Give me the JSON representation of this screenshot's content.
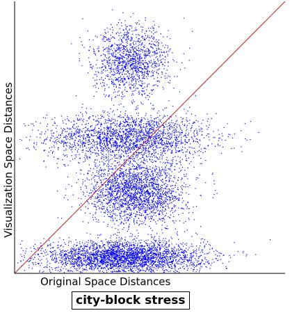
{
  "chart_data": {
    "type": "scatter",
    "title": "city-block stress",
    "xlabel": "Original Space Distances",
    "ylabel": "Visualization Space Distances",
    "xlim": [
      0,
      1
    ],
    "ylim": [
      0,
      1
    ],
    "grid": false,
    "point_color": "#0000ff",
    "reference_line": {
      "color": "#b22222",
      "from": [
        0,
        0
      ],
      "to": [
        1,
        1
      ]
    },
    "density_regions": [
      {
        "x_center": 0.42,
        "x_spread": 0.3,
        "y_center": 0.5,
        "y_spread": 0.09,
        "weight": 0.25
      },
      {
        "x_center": 0.4,
        "x_spread": 0.3,
        "y_center": 0.06,
        "y_spread": 0.06,
        "weight": 0.35
      },
      {
        "x_center": 0.45,
        "x_spread": 0.18,
        "y_center": 0.3,
        "y_spread": 0.12,
        "weight": 0.25
      },
      {
        "x_center": 0.43,
        "x_spread": 0.14,
        "y_center": 0.78,
        "y_spread": 0.13,
        "weight": 0.15
      }
    ]
  }
}
